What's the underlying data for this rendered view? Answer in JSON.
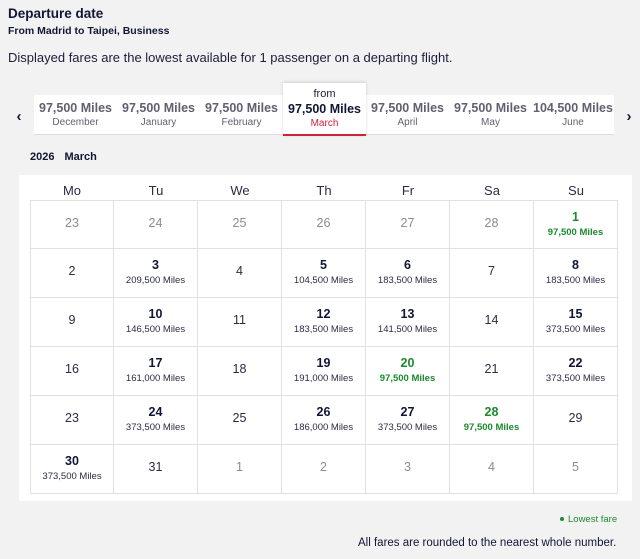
{
  "header": {
    "title": "Departure date",
    "subtitle": "From Madrid to Taipei, Business",
    "note": "Displayed fares are the lowest available for 1 passenger on a departing flight."
  },
  "month_nav": {
    "prev_icon": "chevron-left-icon",
    "next_icon": "chevron-right-icon",
    "prev_glyph": "‹",
    "next_glyph": "›",
    "from_label": "from",
    "months": [
      {
        "price": "97,500 Miles",
        "name": "December",
        "selected": false
      },
      {
        "price": "97,500 Miles",
        "name": "January",
        "selected": false
      },
      {
        "price": "97,500 Miles",
        "name": "February",
        "selected": false
      },
      {
        "price": "97,500 Miles",
        "name": "March",
        "selected": true
      },
      {
        "price": "97,500 Miles",
        "name": "April",
        "selected": false
      },
      {
        "price": "97,500 Miles",
        "name": "May",
        "selected": false
      },
      {
        "price": "104,500 Miles",
        "name": "June",
        "selected": false
      }
    ]
  },
  "period": {
    "year": "2026",
    "month": "March"
  },
  "calendar": {
    "weekdays": [
      "Mo",
      "Tu",
      "We",
      "Th",
      "Fr",
      "Sa",
      "Su"
    ],
    "weeks": [
      [
        {
          "day": "23",
          "fare": "",
          "type": "other"
        },
        {
          "day": "24",
          "fare": "",
          "type": "other"
        },
        {
          "day": "25",
          "fare": "",
          "type": "other"
        },
        {
          "day": "26",
          "fare": "",
          "type": "other"
        },
        {
          "day": "27",
          "fare": "",
          "type": "other"
        },
        {
          "day": "28",
          "fare": "",
          "type": "other"
        },
        {
          "day": "1",
          "fare": "97,500 Miles",
          "type": "lowest"
        }
      ],
      [
        {
          "day": "2",
          "fare": "",
          "type": "none"
        },
        {
          "day": "3",
          "fare": "209,500 Miles",
          "type": "fare"
        },
        {
          "day": "4",
          "fare": "",
          "type": "none"
        },
        {
          "day": "5",
          "fare": "104,500 Miles",
          "type": "fare"
        },
        {
          "day": "6",
          "fare": "183,500 Miles",
          "type": "fare"
        },
        {
          "day": "7",
          "fare": "",
          "type": "none"
        },
        {
          "day": "8",
          "fare": "183,500 Miles",
          "type": "fare"
        }
      ],
      [
        {
          "day": "9",
          "fare": "",
          "type": "none"
        },
        {
          "day": "10",
          "fare": "146,500 Miles",
          "type": "fare"
        },
        {
          "day": "11",
          "fare": "",
          "type": "none"
        },
        {
          "day": "12",
          "fare": "183,500 Miles",
          "type": "fare"
        },
        {
          "day": "13",
          "fare": "141,500 Miles",
          "type": "fare"
        },
        {
          "day": "14",
          "fare": "",
          "type": "none"
        },
        {
          "day": "15",
          "fare": "373,500 Miles",
          "type": "fare"
        }
      ],
      [
        {
          "day": "16",
          "fare": "",
          "type": "none"
        },
        {
          "day": "17",
          "fare": "161,000 Miles",
          "type": "fare"
        },
        {
          "day": "18",
          "fare": "",
          "type": "none"
        },
        {
          "day": "19",
          "fare": "191,000 Miles",
          "type": "fare"
        },
        {
          "day": "20",
          "fare": "97,500 Miles",
          "type": "lowest"
        },
        {
          "day": "21",
          "fare": "",
          "type": "none"
        },
        {
          "day": "22",
          "fare": "373,500 Miles",
          "type": "fare"
        }
      ],
      [
        {
          "day": "23",
          "fare": "",
          "type": "none"
        },
        {
          "day": "24",
          "fare": "373,500 Miles",
          "type": "fare"
        },
        {
          "day": "25",
          "fare": "",
          "type": "none"
        },
        {
          "day": "26",
          "fare": "186,000 Miles",
          "type": "fare"
        },
        {
          "day": "27",
          "fare": "373,500 Miles",
          "type": "fare"
        },
        {
          "day": "28",
          "fare": "97,500 Miles",
          "type": "lowest"
        },
        {
          "day": "29",
          "fare": "",
          "type": "none"
        }
      ],
      [
        {
          "day": "30",
          "fare": "373,500 Miles",
          "type": "fare"
        },
        {
          "day": "31",
          "fare": "",
          "type": "none"
        },
        {
          "day": "1",
          "fare": "",
          "type": "other"
        },
        {
          "day": "2",
          "fare": "",
          "type": "other"
        },
        {
          "day": "3",
          "fare": "",
          "type": "other"
        },
        {
          "day": "4",
          "fare": "",
          "type": "other"
        },
        {
          "day": "5",
          "fare": "",
          "type": "other"
        }
      ]
    ]
  },
  "footer": {
    "legend": "Lowest fare",
    "rounding": "All fares are rounded to the nearest whole number."
  },
  "colors": {
    "lowest_fare": "#1c8a2e",
    "selected_accent": "#d0213c",
    "text_primary": "#111634"
  }
}
